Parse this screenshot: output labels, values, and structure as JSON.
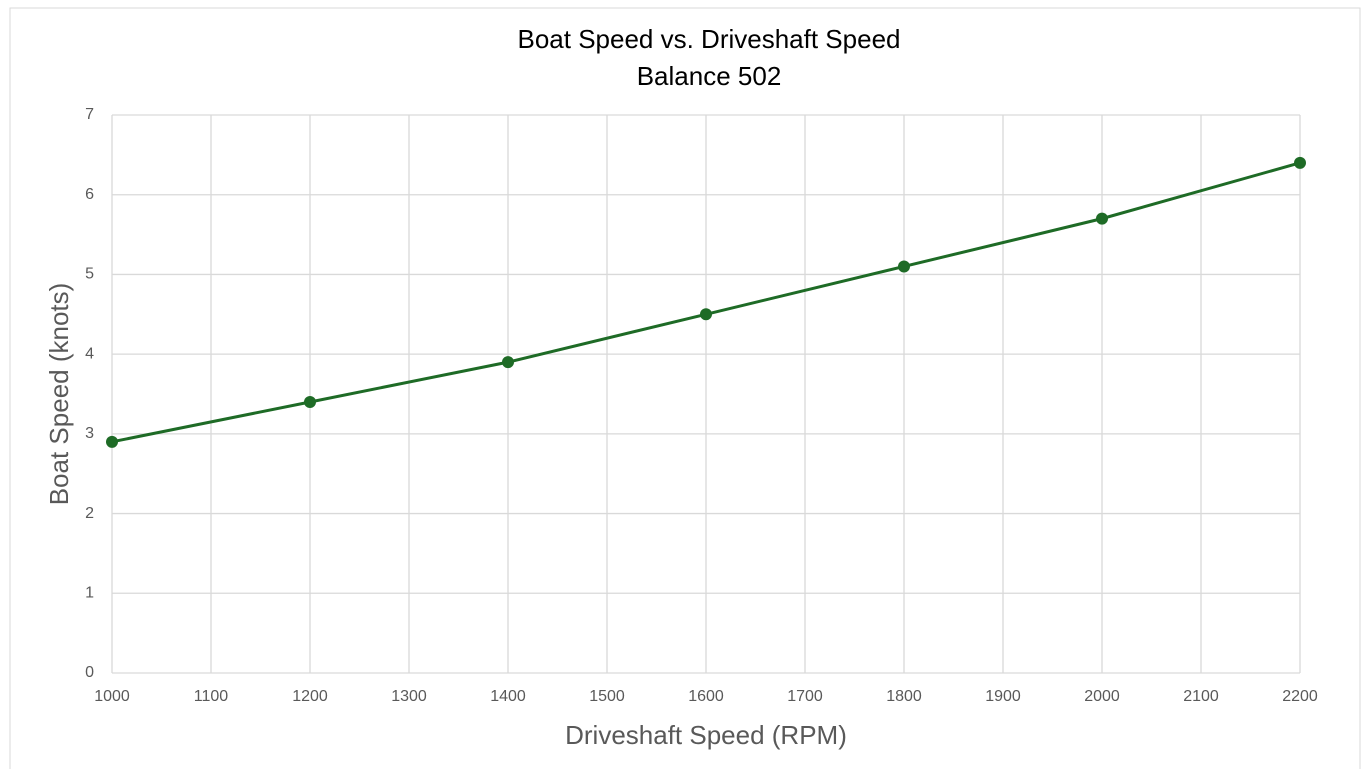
{
  "chart_data": {
    "type": "line",
    "title": "Boat Speed vs. Driveshaft Speed",
    "subtitle": "Balance 502",
    "x_label": "Driveshaft Speed (RPM)",
    "y_label": "Boat Speed (knots)",
    "x": [
      1000,
      1200,
      1400,
      1600,
      1800,
      2000,
      2200
    ],
    "series": [
      {
        "color": "#1e6b26",
        "values": [
          2.9,
          3.4,
          3.9,
          4.5,
          5.1,
          5.7,
          6.4
        ]
      }
    ],
    "xlim": [
      1000,
      2200
    ],
    "xticks": [
      1000,
      1100,
      1200,
      1300,
      1400,
      1500,
      1600,
      1700,
      1800,
      1900,
      2000,
      2100,
      2200
    ],
    "ylim": [
      0,
      7
    ],
    "yticks": [
      0,
      1,
      2,
      3,
      4,
      5,
      6,
      7
    ],
    "grid": true
  }
}
